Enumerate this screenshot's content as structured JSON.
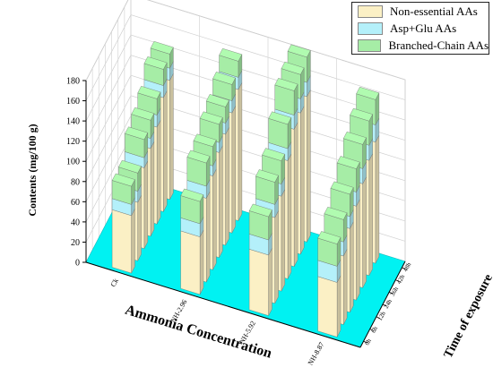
{
  "chart_data": {
    "type": "bar",
    "subtype": "3d-stacked-bar",
    "ylabel": "Contents (mg/100 g)",
    "xlabel": "Ammonia Concentration",
    "zlabel": "Time of exposure",
    "yticks": [
      "0",
      "20",
      "40",
      "60",
      "80",
      "100",
      "120",
      "140",
      "160",
      "180"
    ],
    "ylim": [
      0,
      180
    ],
    "grid": true,
    "legend_position": "top-right",
    "categories": [
      "Ck",
      "NH-2.96",
      "NH-5.92",
      "NH-8.87"
    ],
    "times": [
      "0h",
      "6h",
      "12h",
      "24h",
      "36h",
      "42h",
      "48h"
    ],
    "series": [
      {
        "name": "Non-essential AAs",
        "color": "#fbf0c5",
        "values": [
          [
            57,
            58,
            80,
            87,
            96,
            113,
            118
          ],
          [
            57,
            83,
            93,
            104,
            110,
            119,
            130
          ],
          [
            60,
            85,
            94,
            117,
            136,
            140,
            144
          ],
          [
            54,
            68,
            83,
            93,
            103,
            114,
            120
          ]
        ]
      },
      {
        "name": "Asp+Glu AAs",
        "color": "#b4f0fa",
        "values": [
          [
            11,
            11,
            10,
            10,
            12,
            12,
            12
          ],
          [
            13,
            12,
            10,
            10,
            11,
            12,
            12
          ],
          [
            15,
            13,
            12,
            12,
            14,
            14,
            14
          ],
          [
            16,
            14,
            12,
            14,
            15,
            15,
            17
          ]
        ]
      },
      {
        "name": "Branched-Chain AAs",
        "color": "#a6eda6",
        "values": [
          [
            18,
            18,
            18,
            18,
            16,
            16,
            14
          ],
          [
            22,
            23,
            19,
            18,
            16,
            16,
            16
          ],
          [
            23,
            22,
            23,
            24,
            24,
            24,
            25
          ],
          [
            22,
            22,
            22,
            23,
            24,
            24,
            25
          ]
        ]
      }
    ]
  }
}
